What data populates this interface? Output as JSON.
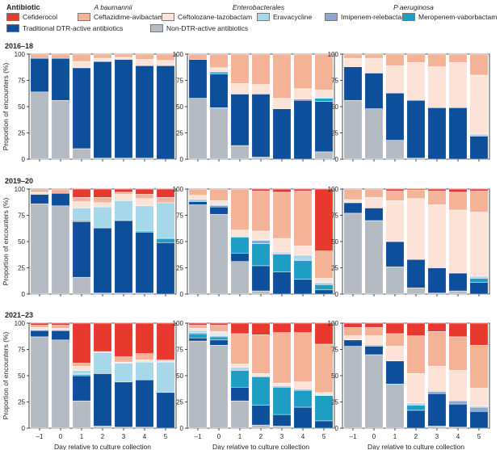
{
  "legend": {
    "title": "Antibiotic",
    "items": [
      {
        "name": "Cefiderocol",
        "color": "#e8392f"
      },
      {
        "name": "Ceftazidime-avibactam",
        "color": "#f4b297"
      },
      {
        "name": "Ceftolozane-tazobactam",
        "color": "#fde3d7"
      },
      {
        "name": "Eravacycline",
        "color": "#a6d8ea"
      },
      {
        "name": "Imipenem-relebactam",
        "color": "#8fa6cf"
      },
      {
        "name": "Meropenem-vaborbactam",
        "color": "#1e9ec4"
      },
      {
        "name": "Traditional DTR-active antibiotics",
        "color": "#0e4f9c"
      },
      {
        "name": "Non-DTR-active antibiotics",
        "color": "#b5bbc2"
      }
    ]
  },
  "columns": [
    "A baumannii",
    "Enterobacterales",
    "P aeruginosa"
  ],
  "periods": [
    "2016–18",
    "2019–20",
    "2021–23"
  ],
  "axes": {
    "ylabel": "Proportion of encounters (%)",
    "xlabel": "Day relative to culture collection",
    "yticks": [
      "0",
      "25",
      "50",
      "75",
      "100"
    ],
    "xticks": [
      "–1",
      "0",
      "1",
      "2",
      "3",
      "4",
      "5"
    ]
  },
  "chart_data": {
    "type": "bar",
    "stacked": true,
    "ylim": [
      0,
      100
    ],
    "categories": [
      -1,
      0,
      1,
      2,
      3,
      4,
      5
    ],
    "stack_order": [
      "Non-DTR-active antibiotics",
      "Traditional DTR-active antibiotics",
      "Meropenem-vaborbactam",
      "Imipenem-relebactam",
      "Eravacycline",
      "Ceftolozane-tazobactam",
      "Ceftazidime-avibactam",
      "Cefiderocol"
    ],
    "panels": [
      {
        "period": "2016–18",
        "organism": "A baumannii",
        "bars": [
          [
            64,
            32,
            0,
            0,
            0,
            0,
            4,
            0
          ],
          [
            56,
            40,
            0,
            0,
            0,
            0,
            4,
            0
          ],
          [
            10,
            77,
            0,
            0,
            0,
            6,
            7,
            0
          ],
          [
            1,
            92,
            0,
            0,
            0,
            3,
            4,
            0
          ],
          [
            1,
            94,
            0,
            0,
            0,
            2,
            3,
            0
          ],
          [
            1,
            88,
            0,
            0,
            0,
            6,
            5,
            0
          ],
          [
            0,
            89,
            0,
            0,
            0,
            5,
            6,
            0
          ]
        ]
      },
      {
        "period": "2016–18",
        "organism": "Enterobacterales",
        "bars": [
          [
            58,
            37,
            0,
            0,
            0,
            0,
            5,
            0
          ],
          [
            49,
            32,
            2,
            0,
            0,
            4,
            13,
            0
          ],
          [
            13,
            49,
            0,
            0,
            0,
            10,
            28,
            0
          ],
          [
            2,
            60,
            0,
            0,
            1,
            8,
            29,
            0
          ],
          [
            0,
            48,
            0,
            0,
            0,
            10,
            42,
            0
          ],
          [
            0,
            56,
            1,
            0,
            0,
            10,
            33,
            0
          ],
          [
            7,
            48,
            3,
            0,
            1,
            7,
            34,
            0
          ]
        ]
      },
      {
        "period": "2016–18",
        "organism": "P aeruginosa",
        "bars": [
          [
            56,
            32,
            0,
            0,
            0,
            8,
            4,
            0
          ],
          [
            48,
            34,
            0,
            0,
            0,
            14,
            4,
            0
          ],
          [
            18,
            45,
            0,
            0,
            0,
            26,
            11,
            0
          ],
          [
            1,
            55,
            0,
            0,
            0,
            36,
            8,
            0
          ],
          [
            0,
            49,
            0,
            0,
            0,
            39,
            12,
            0
          ],
          [
            0,
            49,
            0,
            0,
            0,
            43,
            8,
            0
          ],
          [
            0,
            22,
            0,
            1,
            1,
            56,
            20,
            0
          ]
        ]
      },
      {
        "period": "2019–20",
        "organism": "A baumannii",
        "bars": [
          [
            86,
            9,
            0,
            0,
            0,
            2,
            3,
            0
          ],
          [
            84,
            12,
            0,
            0,
            0,
            0,
            4,
            0
          ],
          [
            16,
            53,
            1,
            0,
            12,
            6,
            4,
            8
          ],
          [
            1,
            62,
            0,
            0,
            20,
            4,
            5,
            8
          ],
          [
            1,
            69,
            0,
            0,
            19,
            6,
            2,
            3
          ],
          [
            1,
            58,
            1,
            0,
            24,
            7,
            4,
            5
          ],
          [
            0,
            49,
            4,
            0,
            34,
            0,
            5,
            8
          ]
        ]
      },
      {
        "period": "2019–20",
        "organism": "Enterobacterales",
        "bars": [
          [
            85,
            3,
            1,
            1,
            0,
            4,
            6,
            0
          ],
          [
            76,
            7,
            1,
            1,
            0,
            4,
            11,
            0
          ],
          [
            31,
            8,
            15,
            1,
            0,
            6,
            39,
            0
          ],
          [
            3,
            24,
            21,
            3,
            1,
            8,
            38,
            2
          ],
          [
            0,
            21,
            17,
            1,
            1,
            13,
            44,
            3
          ],
          [
            0,
            14,
            18,
            1,
            4,
            9,
            52,
            2
          ],
          [
            0,
            4,
            5,
            1,
            1,
            4,
            26,
            59
          ]
        ]
      },
      {
        "period": "2019–20",
        "organism": "P aeruginosa",
        "bars": [
          [
            77,
            10,
            0,
            0,
            0,
            3,
            10,
            0
          ],
          [
            70,
            12,
            0,
            0,
            0,
            10,
            8,
            0
          ],
          [
            26,
            24,
            0,
            0,
            0,
            39,
            9,
            2
          ],
          [
            6,
            27,
            0,
            0,
            0,
            58,
            8,
            1
          ],
          [
            1,
            24,
            0,
            0,
            0,
            60,
            13,
            2
          ],
          [
            3,
            17,
            0,
            0,
            0,
            60,
            17,
            3
          ],
          [
            0,
            11,
            4,
            1,
            1,
            61,
            20,
            2
          ]
        ]
      },
      {
        "period": "2021–23",
        "organism": "A baumannii",
        "bars": [
          [
            87,
            6,
            0,
            0,
            1,
            2,
            2,
            2
          ],
          [
            84,
            9,
            0,
            0,
            0,
            2,
            3,
            2
          ],
          [
            26,
            24,
            1,
            1,
            3,
            4,
            3,
            38
          ],
          [
            2,
            50,
            0,
            0,
            20,
            1,
            0,
            27
          ],
          [
            1,
            43,
            0,
            0,
            18,
            1,
            5,
            32
          ],
          [
            1,
            45,
            0,
            0,
            17,
            2,
            6,
            29
          ],
          [
            0,
            34,
            0,
            0,
            29,
            1,
            1,
            35
          ]
        ]
      },
      {
        "period": "2021–23",
        "organism": "Enterobacterales",
        "bars": [
          [
            83,
            3,
            4,
            1,
            2,
            2,
            3,
            2
          ],
          [
            79,
            5,
            3,
            1,
            1,
            3,
            6,
            2
          ],
          [
            26,
            13,
            16,
            1,
            2,
            3,
            29,
            10
          ],
          [
            3,
            19,
            27,
            0,
            0,
            3,
            37,
            11
          ],
          [
            2,
            11,
            26,
            1,
            0,
            3,
            48,
            9
          ],
          [
            0,
            20,
            16,
            1,
            0,
            7,
            47,
            9
          ],
          [
            0,
            7,
            24,
            0,
            1,
            2,
            46,
            20
          ]
        ]
      },
      {
        "period": "2021–23",
        "organism": "P aeruginosa",
        "bars": [
          [
            78,
            6,
            0,
            0,
            0,
            4,
            8,
            4
          ],
          [
            70,
            8,
            1,
            0,
            0,
            9,
            8,
            4
          ],
          [
            42,
            22,
            0,
            0,
            0,
            14,
            12,
            10
          ],
          [
            0,
            17,
            5,
            1,
            1,
            28,
            36,
            12
          ],
          [
            2,
            31,
            0,
            2,
            1,
            23,
            33,
            8
          ],
          [
            1,
            22,
            0,
            3,
            0,
            29,
            32,
            13
          ],
          [
            0,
            16,
            0,
            4,
            1,
            17,
            41,
            21
          ]
        ]
      }
    ]
  }
}
